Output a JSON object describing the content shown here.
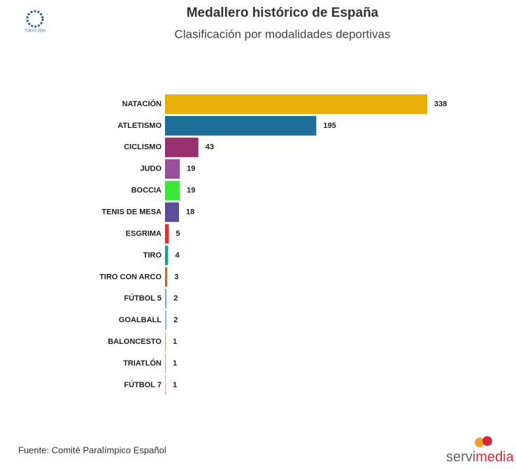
{
  "chart_data": {
    "type": "bar",
    "orientation": "horizontal",
    "title": "Medallero histórico de España",
    "subtitle": "Clasificación por modalidades deportivas",
    "categories": [
      "NATACIÓN",
      "ATLETISMO",
      "CICLISMO",
      "JUDO",
      "BOCCIA",
      "TENIS DE MESA",
      "ESGRIMA",
      "TIRO",
      "TIRO CON ARCO",
      "FÚTBOL 5",
      "GOALBALL",
      "BALONCESTO",
      "TRIATLÓN",
      "FÚTBOL 7"
    ],
    "values": [
      338,
      195,
      43,
      19,
      19,
      18,
      5,
      4,
      3,
      2,
      2,
      1,
      1,
      1
    ],
    "colors": [
      "#e8ae0a",
      "#1f6e99",
      "#96306e",
      "#9b4f9a",
      "#3de63d",
      "#5c4a9a",
      "#d63838",
      "#1f9a8e",
      "#b8703a",
      "#7ab0cc",
      "#9bbcd8",
      "#e6a86a",
      "#b0b0b0",
      "#e0a0c0"
    ],
    "source": "Fuente: Comité Paralímpico Español",
    "brand": [
      "servi",
      "media"
    ],
    "logo_text": "TOKYO 2020"
  }
}
